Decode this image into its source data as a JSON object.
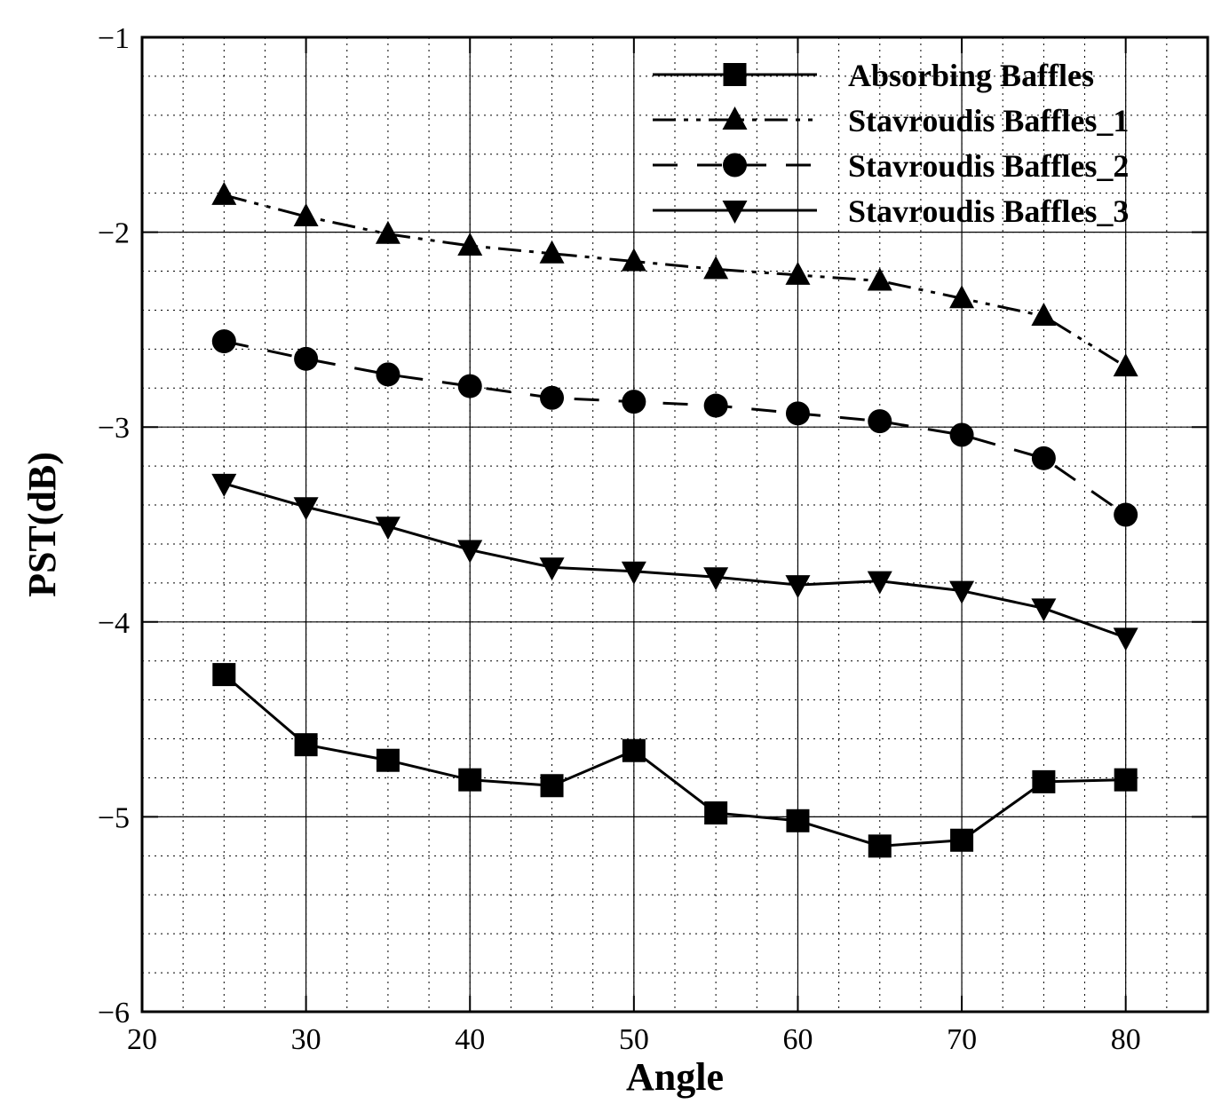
{
  "chart_data": {
    "type": "line",
    "xlabel": "Angle",
    "ylabel": "PST(dB)",
    "xlim": [
      20,
      85
    ],
    "ylim": [
      -6,
      -1
    ],
    "grid": "major solid, minor dotted",
    "legend_placement": "top-right",
    "x_ticks": [
      "20",
      "30",
      "40",
      "50",
      "60",
      "70",
      "80"
    ],
    "y_ticks": [
      "-1",
      "-2",
      "-3",
      "-4",
      "-5",
      "-6"
    ],
    "x": [
      25,
      30,
      35,
      40,
      45,
      50,
      55,
      60,
      65,
      70,
      75,
      80
    ],
    "series": [
      {
        "name": "Absorbing Baffles",
        "marker": "square",
        "line_style": "solid",
        "values": [
          -4.27,
          -4.63,
          -4.71,
          -4.81,
          -4.84,
          -4.66,
          -4.98,
          -5.02,
          -5.15,
          -5.12,
          -4.82,
          -4.81
        ]
      },
      {
        "name": "Stavroudis Baffles_1",
        "marker": "triangle-up",
        "line_style": "dash-dot-dot",
        "values": [
          -1.81,
          -1.92,
          -2.01,
          -2.07,
          -2.11,
          -2.15,
          -2.19,
          -2.22,
          -2.25,
          -2.34,
          -2.43,
          -2.69
        ]
      },
      {
        "name": "Stavroudis Baffles_2",
        "marker": "circle",
        "line_style": "dashed",
        "values": [
          -2.56,
          -2.65,
          -2.73,
          -2.79,
          -2.85,
          -2.87,
          -2.89,
          -2.93,
          -2.97,
          -3.04,
          -3.16,
          -3.45
        ]
      },
      {
        "name": "Stavroudis Baffles_3",
        "marker": "triangle-down",
        "line_style": "solid",
        "values": [
          -3.29,
          -3.41,
          -3.51,
          -3.63,
          -3.72,
          -3.74,
          -3.77,
          -3.81,
          -3.79,
          -3.84,
          -3.93,
          -4.08
        ]
      }
    ],
    "colors": {
      "line": "#000000",
      "background": "#ffffff"
    }
  }
}
